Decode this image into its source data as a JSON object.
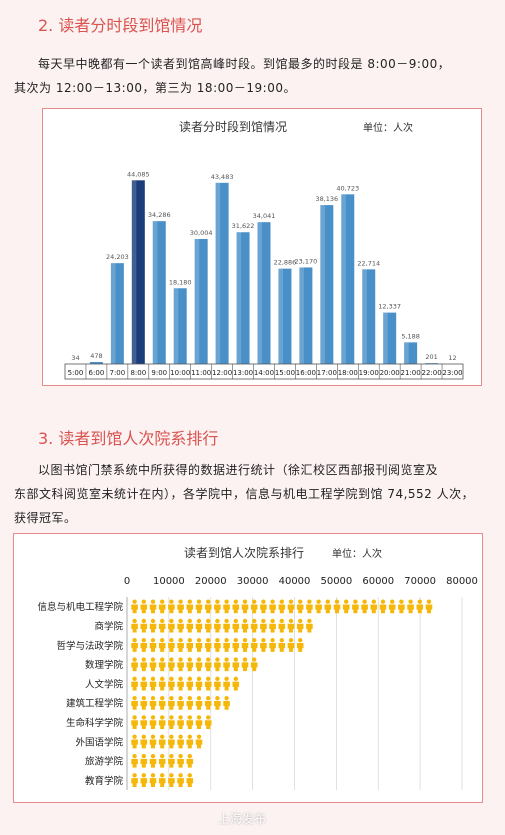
{
  "section2": {
    "title": "2. 读者分时段到馆情况",
    "para_line1": "每天早中晚都有一个读者到馆高峰时段。到馆最多的时段是 8:00－9:00，",
    "para_line2": "其次为 12:00－13:00，第三为 18:00－19:00。"
  },
  "section3": {
    "title": "3. 读者到馆人次院系排行",
    "para_line1": "以图书馆门禁系统中所获得的数据进行统计（徐汇校区西部报刊阅览室及",
    "para_line2": "东部文科阅览室未统计在内），各学院中，信息与机电工程学院到馆 74,552 人次，",
    "para_line3": "获得冠军。"
  },
  "watermark": "上海发布",
  "chart_data": [
    {
      "type": "bar",
      "title": "读者分时段到馆情况",
      "unit_label": "单位：人次",
      "categories": [
        "5:00",
        "6:00",
        "7:00",
        "8:00",
        "9:00",
        "10:00",
        "11:00",
        "12:00",
        "13:00",
        "14:00",
        "15:00",
        "16:00",
        "17:00",
        "18:00",
        "19:00",
        "20:00",
        "21:00",
        "22:00",
        "23:00"
      ],
      "values": [
        34,
        478,
        24203,
        44085,
        34286,
        18180,
        30004,
        43483,
        31622,
        34041,
        22886,
        23170,
        38136,
        40723,
        22714,
        12337,
        5188,
        201,
        12
      ],
      "value_labels": [
        "34",
        "478",
        "24,203",
        "44,085",
        "34,286",
        "18,180",
        "30,004",
        "43,483",
        "31,622",
        "34,041",
        "22,886",
        "23,170",
        "38,136",
        "40,723",
        "22,714",
        "12,337",
        "5,188",
        "201",
        "12"
      ],
      "highlight_index": 3,
      "colors": {
        "bar": "#4a90c8",
        "highlight": "#1a3c7a"
      },
      "ylim": [
        0,
        48000
      ]
    },
    {
      "type": "bar",
      "orientation": "horizontal",
      "title": "读者到馆人次院系排行",
      "unit_label": "单位：人次",
      "x_ticks": [
        "0",
        "10000",
        "20000",
        "30000",
        "40000",
        "50000",
        "60000",
        "70000",
        "80000"
      ],
      "xlim": [
        0,
        80000
      ],
      "categories": [
        "信息与机电工程学院",
        "商学院",
        "哲学与法政学院",
        "数理学院",
        "人文学院",
        "建筑工程学院",
        "生命科学学院",
        "外国语学院",
        "旅游学院",
        "教育学院"
      ],
      "values": [
        74552,
        46000,
        44000,
        32000,
        28000,
        27000,
        22000,
        19000,
        18500,
        17500
      ],
      "colors": {
        "icon": "#f5b80a"
      },
      "grid": true
    }
  ]
}
